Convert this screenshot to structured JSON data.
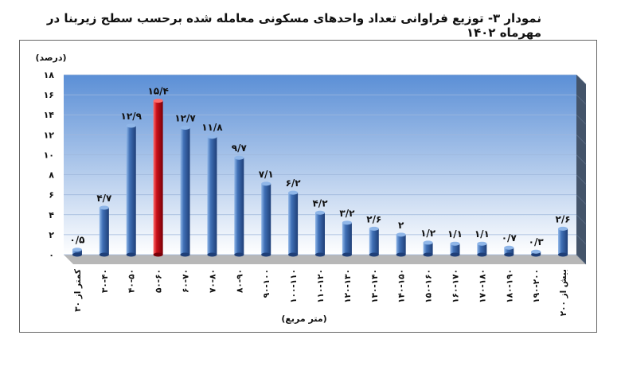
{
  "title": "نمودار ۳- توزیع فراوانی تعداد واحدهای مسکونی معامله شده برحسب سطح زیربنا در مهرماه ۱۴۰۲",
  "chart_data": {
    "type": "bar",
    "title": "نمودار ۳- توزیع فراوانی تعداد واحدهای مسکونی معامله شده برحسب سطح زیربنا در مهرماه ۱۴۰۲",
    "xlabel": "(متر مربع)",
    "ylabel": "(درصد)",
    "ylim": [
      0,
      18
    ],
    "yticks": [
      0,
      2,
      4,
      6,
      8,
      10,
      12,
      14,
      16,
      18
    ],
    "ytick_labels": [
      "۰",
      "۲",
      "۴",
      "۶",
      "۸",
      "۱۰",
      "۱۲",
      "۱۴",
      "۱۶",
      "۱۸"
    ],
    "grid": true,
    "categories": [
      "کمتر از ۳۰",
      "۳۰-۴۰",
      "۴۰-۵۰",
      "۵۰-۶۰",
      "۶۰-۷۰",
      "۷۰-۸۰",
      "۸۰-۹۰",
      "۹۰-۱۰۰",
      "۱۰۰-۱۱۰",
      "۱۱۰-۱۲۰",
      "۱۲۰-۱۳۰",
      "۱۳۰-۱۴۰",
      "۱۴۰-۱۵۰",
      "۱۵۰-۱۶۰",
      "۱۶۰-۱۷۰",
      "۱۷۰-۱۸۰",
      "۱۸۰-۱۹۰",
      "۱۹۰-۲۰۰",
      "بیش از ۲۰۰"
    ],
    "values": [
      0.5,
      4.7,
      12.9,
      15.4,
      12.7,
      11.8,
      9.7,
      7.1,
      6.2,
      4.2,
      3.2,
      2.6,
      2.0,
      1.2,
      1.1,
      1.1,
      0.7,
      0.3,
      2.6
    ],
    "value_labels": [
      "۰/۵",
      "۴/۷",
      "۱۲/۹",
      "۱۵/۴",
      "۱۲/۷",
      "۱۱/۸",
      "۹/۷",
      "۷/۱",
      "۶/۲",
      "۴/۲",
      "۳/۲",
      "۲/۶",
      "۲",
      "۱/۲",
      "۱/۱",
      "۱/۱",
      "۰/۷",
      "۰/۳",
      "۲/۶"
    ],
    "highlight_index": 3,
    "colors": {
      "bar": "#3f6fb5",
      "bar_light": "#8fb6e8",
      "bar_dark": "#1f3f78",
      "highlight": "#c8101a",
      "highlight_light": "#ff6b6b",
      "highlight_dark": "#7a0008",
      "plot_top": "#5b8fd6",
      "plot_bottom": "#ffffff",
      "floor": "#b7b7b7",
      "side_wall": "#44546a"
    }
  }
}
